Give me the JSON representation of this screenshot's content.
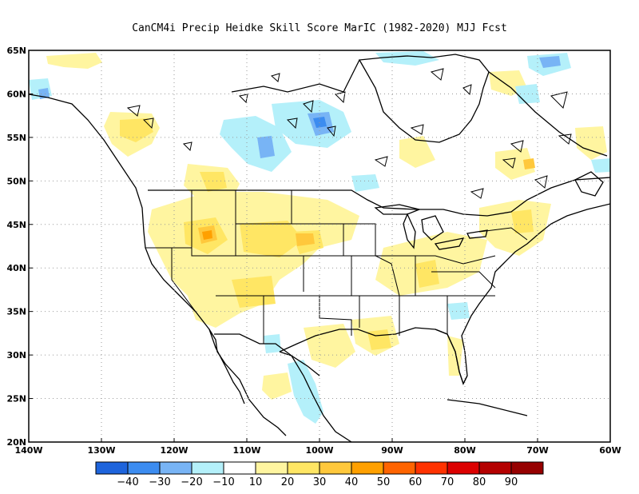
{
  "title": "CanCM4i Precip Heidke Skill Score MarIC (1982-2020) MJJ Fcst",
  "map": {
    "lat_labels": [
      "65N",
      "60N",
      "55N",
      "50N",
      "45N",
      "40N",
      "35N",
      "30N",
      "25N",
      "20N"
    ],
    "lon_labels": [
      "140W",
      "130W",
      "120W",
      "110W",
      "100W",
      "90W",
      "80W",
      "70W",
      "60W"
    ],
    "gridlines": "dotted"
  },
  "colorbar": {
    "colors": [
      "#1e64dc",
      "#3c8cf0",
      "#78b4f5",
      "#b4f0fa",
      "#ffffff",
      "#fff5a0",
      "#ffe664",
      "#ffc83c",
      "#ffa000",
      "#ff6400",
      "#ff3200",
      "#dc0000",
      "#b40000",
      "#960000"
    ],
    "labels": [
      "-40",
      "-30",
      "-20",
      "-10",
      "10",
      "20",
      "30",
      "40",
      "50",
      "60",
      "70",
      "80",
      "90"
    ]
  }
}
